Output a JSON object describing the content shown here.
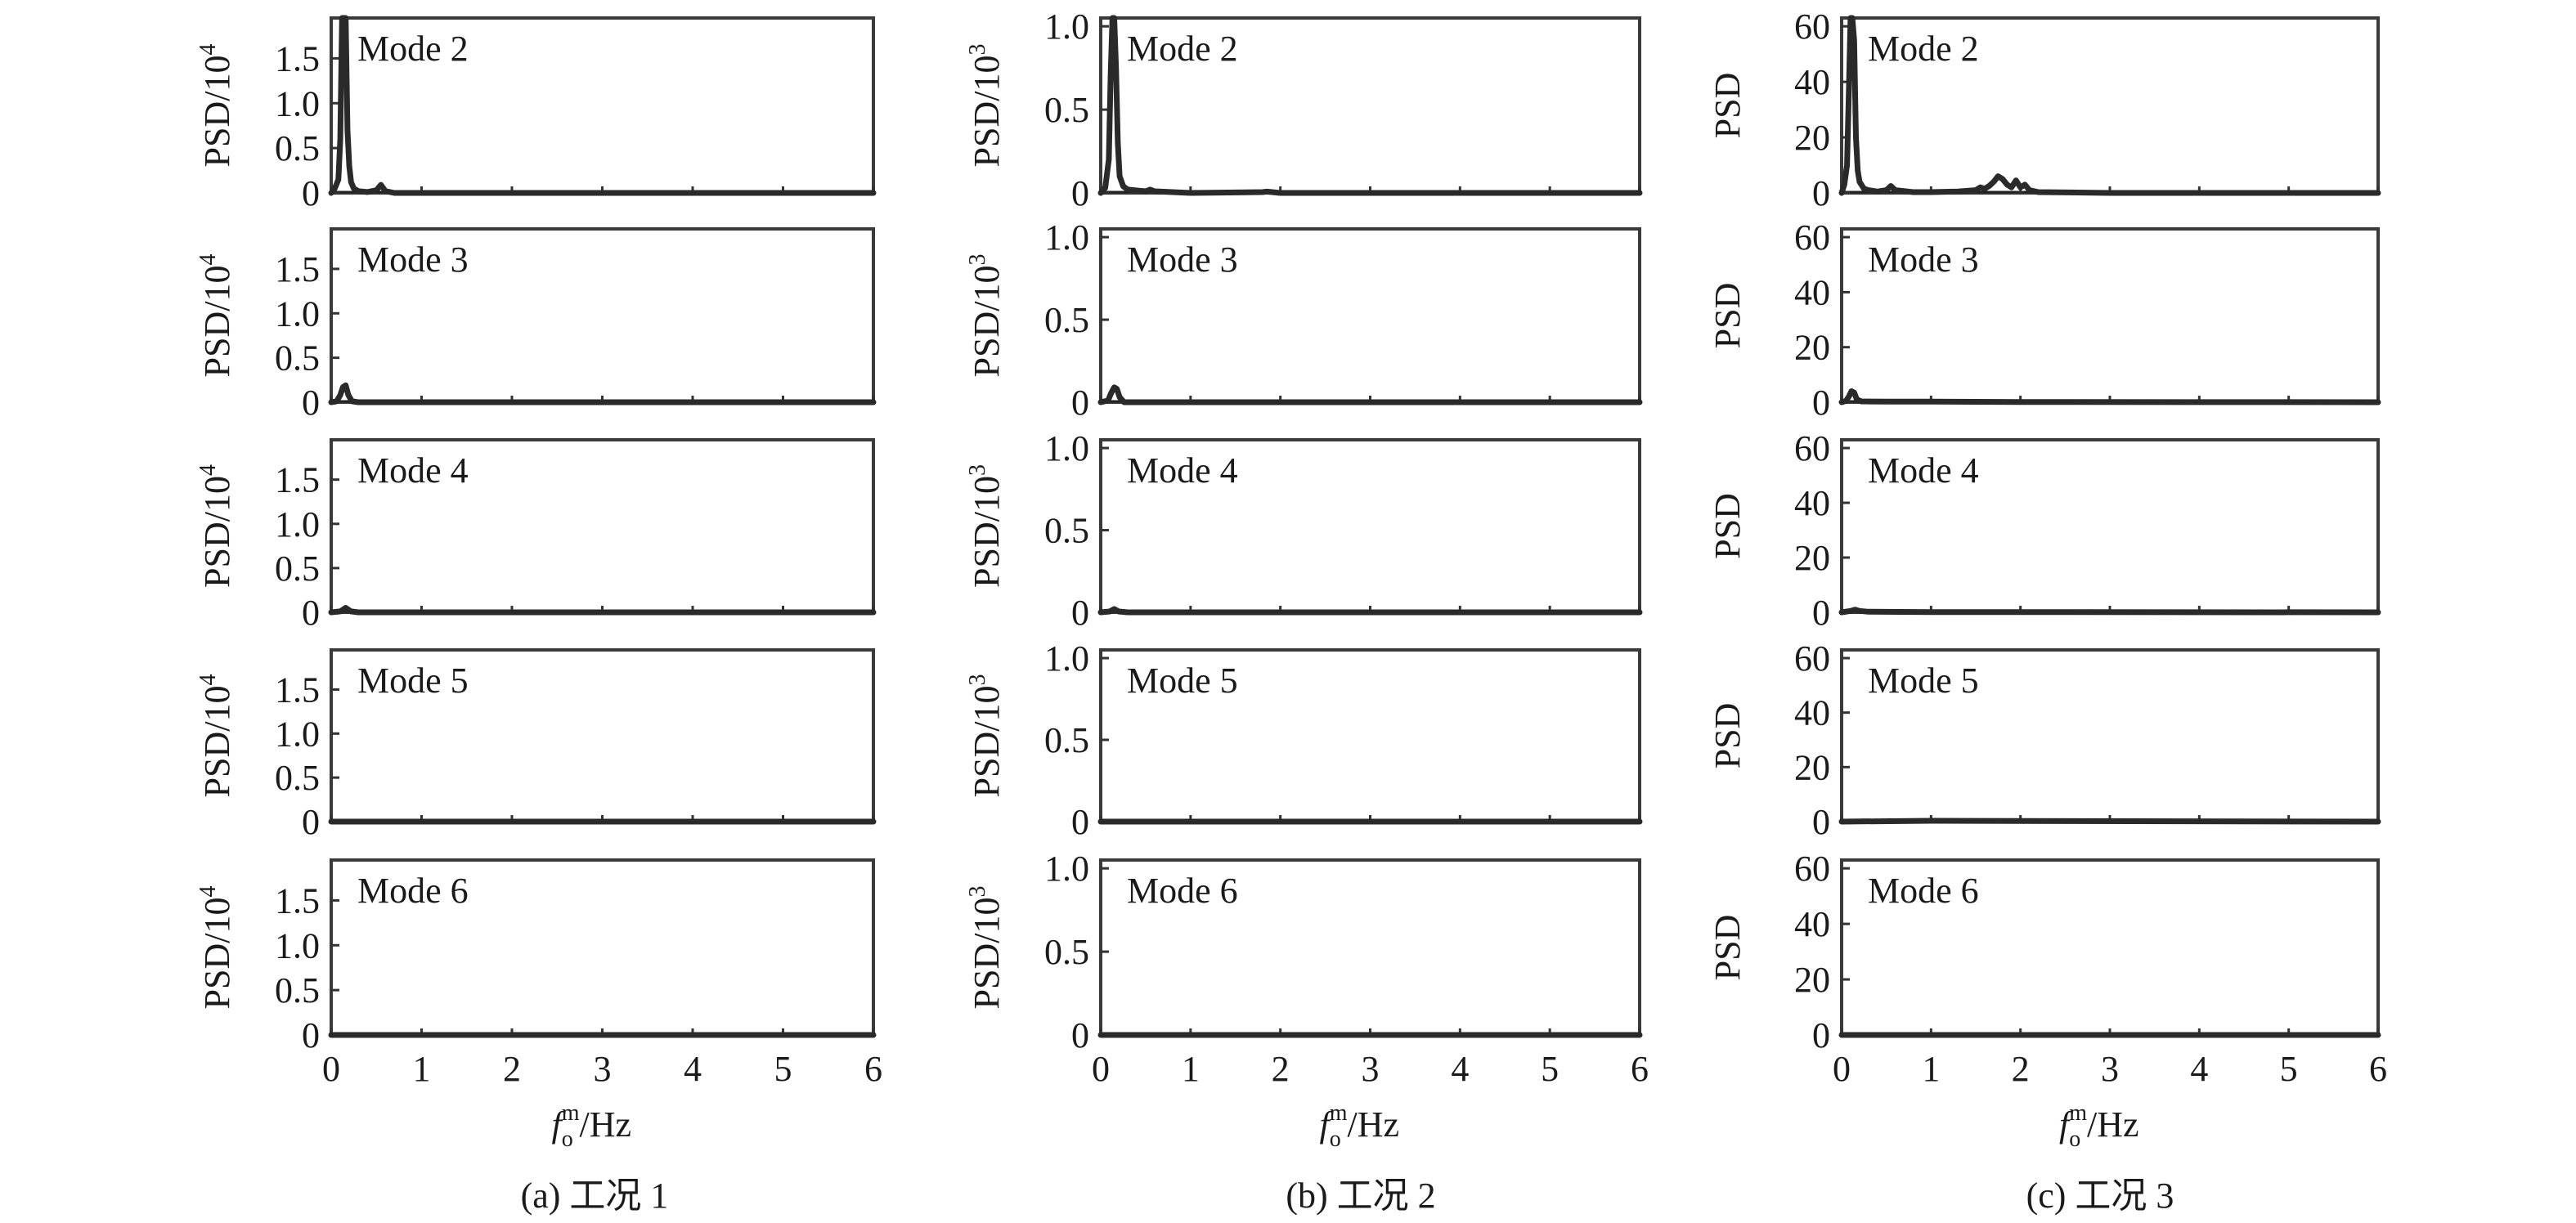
{
  "chart_data": [
    {
      "type": "line",
      "caption": "(a) 工况 1",
      "xlabel": "f_o^m/Hz",
      "xlabel_parts": {
        "f": "f",
        "sub": "o",
        "sup": "m",
        "rest": "/Hz"
      },
      "ylabel": "PSD/10^4",
      "ylabel_parts": {
        "base": "PSD/10",
        "sup": "4"
      },
      "xlim": [
        0,
        6
      ],
      "xticks": [
        "0",
        "1",
        "2",
        "3",
        "4",
        "5",
        "6"
      ],
      "ylim": [
        0,
        1.95
      ],
      "yticks": [
        {
          "value": 0,
          "label": "0"
        },
        {
          "value": 0.5,
          "label": "0.5"
        },
        {
          "value": 1.0,
          "label": "1.0"
        },
        {
          "value": 1.5,
          "label": "1.5"
        }
      ],
      "series": [
        {
          "name": "Mode 2",
          "x": [
            0,
            0.04,
            0.08,
            0.1,
            0.12,
            0.14,
            0.16,
            0.18,
            0.2,
            0.22,
            0.25,
            0.3,
            0.4,
            0.5,
            0.55,
            0.6,
            0.7,
            1,
            2,
            3,
            4,
            5,
            6
          ],
          "y": [
            0,
            0.05,
            0.15,
            0.6,
            1.95,
            1.95,
            1.95,
            0.7,
            0.3,
            0.12,
            0.05,
            0.02,
            0.01,
            0.03,
            0.09,
            0.02,
            0,
            0,
            0,
            0,
            0,
            0,
            0
          ]
        },
        {
          "name": "Mode 3",
          "x": [
            0,
            0.06,
            0.1,
            0.13,
            0.16,
            0.19,
            0.23,
            0.3,
            6
          ],
          "y": [
            0,
            0.01,
            0.08,
            0.17,
            0.19,
            0.08,
            0.01,
            0,
            0
          ]
        },
        {
          "name": "Mode 4",
          "x": [
            0,
            0.1,
            0.16,
            0.22,
            0.3,
            6
          ],
          "y": [
            0,
            0.01,
            0.05,
            0.01,
            0,
            0
          ]
        },
        {
          "name": "Mode 5",
          "x": [
            0,
            6
          ],
          "y": [
            0,
            0
          ]
        },
        {
          "name": "Mode 6",
          "x": [
            0,
            6
          ],
          "y": [
            0,
            0
          ]
        }
      ]
    },
    {
      "type": "line",
      "caption": "(b) 工况 2",
      "xlabel": "f_o^m/Hz",
      "xlabel_parts": {
        "f": "f",
        "sub": "o",
        "sup": "m",
        "rest": "/Hz"
      },
      "ylabel": "PSD/10^3",
      "ylabel_parts": {
        "base": "PSD/10",
        "sup": "3"
      },
      "xlim": [
        0,
        6
      ],
      "xticks": [
        "0",
        "1",
        "2",
        "3",
        "4",
        "5",
        "6"
      ],
      "ylim": [
        0,
        1.05
      ],
      "yticks": [
        {
          "value": 0,
          "label": "0"
        },
        {
          "value": 0.5,
          "label": "0.5"
        },
        {
          "value": 1.0,
          "label": "1.0"
        }
      ],
      "series": [
        {
          "name": "Mode 2",
          "x": [
            0,
            0.05,
            0.09,
            0.11,
            0.13,
            0.15,
            0.17,
            0.19,
            0.21,
            0.25,
            0.3,
            0.5,
            0.55,
            0.6,
            1,
            1.8,
            1.85,
            2,
            3,
            4,
            5,
            6
          ],
          "y": [
            0,
            0.03,
            0.2,
            0.7,
            1.05,
            1.05,
            0.75,
            0.3,
            0.1,
            0.04,
            0.02,
            0.01,
            0.02,
            0.01,
            0,
            0.005,
            0.008,
            0,
            0,
            0,
            0,
            0
          ]
        },
        {
          "name": "Mode 3",
          "x": [
            0,
            0.08,
            0.12,
            0.15,
            0.18,
            0.21,
            0.26,
            6
          ],
          "y": [
            0,
            0.01,
            0.06,
            0.09,
            0.08,
            0.03,
            0,
            0
          ]
        },
        {
          "name": "Mode 4",
          "x": [
            0,
            0.1,
            0.15,
            0.2,
            0.3,
            6
          ],
          "y": [
            0,
            0.005,
            0.02,
            0.005,
            0,
            0
          ]
        },
        {
          "name": "Mode 5",
          "x": [
            0,
            6
          ],
          "y": [
            0,
            0
          ]
        },
        {
          "name": "Mode 6",
          "x": [
            0,
            6
          ],
          "y": [
            0,
            0
          ]
        }
      ]
    },
    {
      "type": "line",
      "caption": "(c) 工况 3",
      "xlabel": "f_o^m/Hz",
      "xlabel_parts": {
        "f": "f",
        "sub": "o",
        "sup": "m",
        "rest": "/Hz"
      },
      "ylabel": "PSD",
      "ylabel_parts": {
        "base": "PSD",
        "sup": ""
      },
      "xlim": [
        0,
        6
      ],
      "xticks": [
        "0",
        "1",
        "2",
        "3",
        "4",
        "5",
        "6"
      ],
      "ylim": [
        0,
        63
      ],
      "yticks": [
        {
          "value": 0,
          "label": "0"
        },
        {
          "value": 20,
          "label": "20"
        },
        {
          "value": 40,
          "label": "40"
        },
        {
          "value": 60,
          "label": "60"
        }
      ],
      "series": [
        {
          "name": "Mode 2",
          "x": [
            0,
            0.03,
            0.06,
            0.08,
            0.1,
            0.12,
            0.14,
            0.16,
            0.18,
            0.2,
            0.25,
            0.3,
            0.4,
            0.5,
            0.55,
            0.6,
            0.8,
            1,
            1.3,
            1.5,
            1.55,
            1.6,
            1.65,
            1.7,
            1.75,
            1.8,
            1.85,
            1.9,
            1.95,
            2.0,
            2.05,
            2.1,
            2.2,
            3,
            4,
            5,
            6
          ],
          "y": [
            0,
            3,
            10,
            35,
            63,
            63,
            55,
            20,
            8,
            4,
            1.5,
            1,
            0.5,
            1,
            2.5,
            1,
            0.3,
            0.3,
            0.5,
            1,
            2,
            1.5,
            2.5,
            4,
            6,
            5,
            3,
            2,
            4.5,
            2,
            3,
            1,
            0.3,
            0,
            0,
            0,
            0
          ]
        },
        {
          "name": "Mode 3",
          "x": [
            0,
            0.05,
            0.08,
            0.11,
            0.14,
            0.17,
            0.22,
            0.5,
            1,
            2,
            6
          ],
          "y": [
            0,
            0.5,
            2,
            4,
            3.5,
            1,
            0.3,
            0.2,
            0.2,
            0.1,
            0
          ]
        },
        {
          "name": "Mode 4",
          "x": [
            0,
            0.1,
            0.15,
            0.2,
            0.3,
            1,
            6
          ],
          "y": [
            0,
            0.5,
            1,
            0.5,
            0.2,
            0.1,
            0
          ]
        },
        {
          "name": "Mode 5",
          "x": [
            0,
            1,
            2,
            6
          ],
          "y": [
            0,
            0.3,
            0.2,
            0
          ]
        },
        {
          "name": "Mode 6",
          "x": [
            0,
            6
          ],
          "y": [
            0,
            0
          ]
        }
      ]
    }
  ]
}
